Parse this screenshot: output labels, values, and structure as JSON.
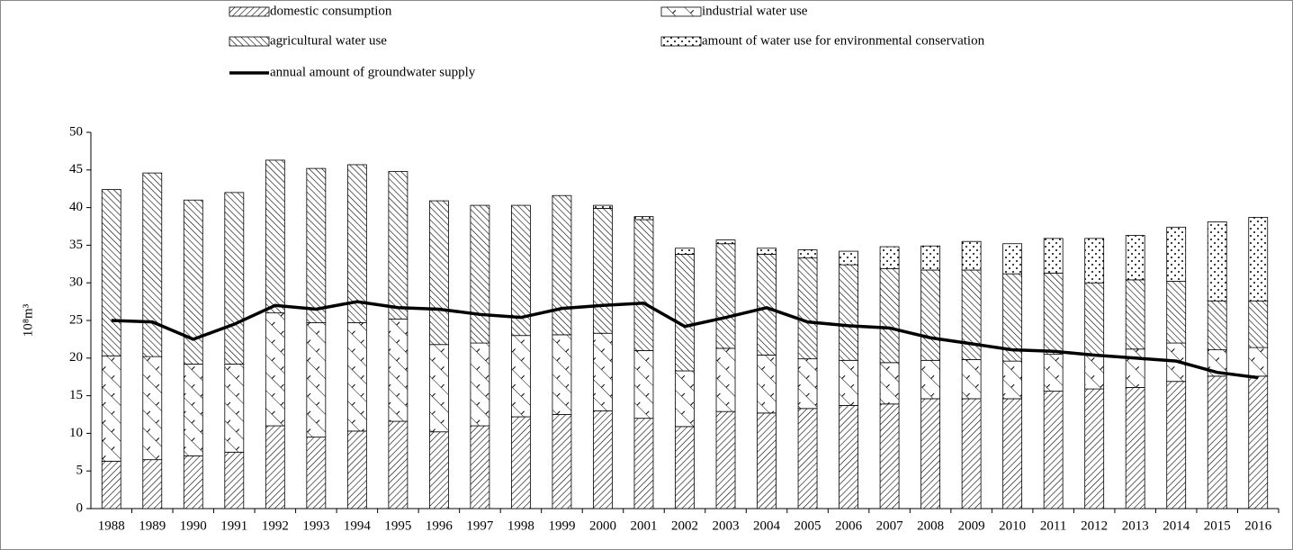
{
  "chart_data": {
    "type": "stacked_bar_line",
    "y_label": "10⁸m³",
    "categories": [
      "1988",
      "1989",
      "1990",
      "1991",
      "1992",
      "1993",
      "1994",
      "1995",
      "1996",
      "1997",
      "1998",
      "1999",
      "2000",
      "2001",
      "2002",
      "2003",
      "2004",
      "2005",
      "2006",
      "2007",
      "2008",
      "2009",
      "2010",
      "2011",
      "2012",
      "2013",
      "2014",
      "2015",
      "2016"
    ],
    "series": [
      {
        "name": "domestic consumption",
        "color": "#000000",
        "values": [
          6.3,
          6.5,
          7.0,
          7.5,
          11.0,
          9.5,
          10.3,
          11.6,
          10.2,
          11.0,
          12.2,
          12.5,
          13.0,
          12.0,
          10.9,
          12.9,
          12.7,
          13.3,
          13.7,
          13.9,
          14.6,
          14.6,
          14.6,
          15.6,
          15.9,
          16.1,
          16.9,
          17.6,
          17.6
        ]
      },
      {
        "name": "industrial water use",
        "color": "#000000",
        "values": [
          14.0,
          13.7,
          12.2,
          11.7,
          15.0,
          15.2,
          14.4,
          13.6,
          11.6,
          11.0,
          10.8,
          10.6,
          10.3,
          9.0,
          7.4,
          8.4,
          7.7,
          6.6,
          6.0,
          5.5,
          5.1,
          5.2,
          5.0,
          4.9,
          4.5,
          5.1,
          5.1,
          3.5,
          3.8
        ]
      },
      {
        "name": "agricultural water use",
        "color": "#000000",
        "values": [
          22.1,
          24.4,
          21.8,
          22.8,
          20.3,
          20.5,
          21.0,
          19.6,
          19.1,
          18.3,
          17.3,
          18.5,
          16.6,
          17.4,
          15.5,
          13.9,
          13.4,
          13.4,
          12.7,
          12.5,
          12.0,
          11.9,
          11.6,
          10.8,
          9.6,
          9.2,
          8.2,
          6.5,
          6.2
        ]
      },
      {
        "name": "amount of water use for environmental conservation",
        "color": "#000000",
        "values": [
          0,
          0,
          0,
          0,
          0,
          0,
          0,
          0,
          0,
          0,
          0,
          0,
          0.4,
          0.4,
          0.8,
          0.5,
          0.8,
          1.1,
          1.8,
          2.9,
          3.2,
          3.8,
          4.0,
          4.6,
          5.9,
          5.9,
          7.2,
          10.5,
          11.1
        ]
      }
    ],
    "line": {
      "name": "annual amount of groundwater supply",
      "color": "#000000",
      "values": [
        25.0,
        24.8,
        22.5,
        24.5,
        27.0,
        26.5,
        27.5,
        26.7,
        26.5,
        25.8,
        25.4,
        26.6,
        27.0,
        27.3,
        24.2,
        25.4,
        26.7,
        24.8,
        24.3,
        24.0,
        22.7,
        21.9,
        21.1,
        20.9,
        20.4,
        20.0,
        19.6,
        18.1,
        17.4
      ]
    },
    "ylim": [
      0,
      50
    ],
    "yticks": [
      0,
      5,
      10,
      15,
      20,
      25,
      30,
      35,
      40,
      45,
      50
    ],
    "grid": false
  }
}
